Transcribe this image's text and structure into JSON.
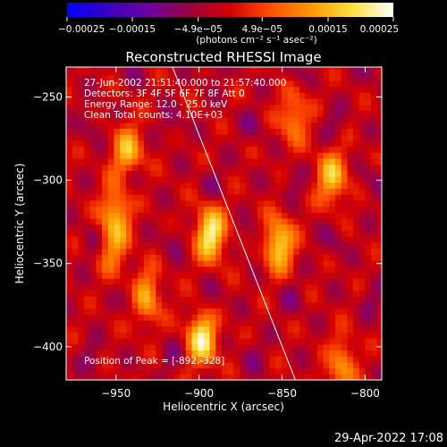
{
  "chart_data": {
    "type": "heatmap",
    "title": "Reconstructed RHESSI Image",
    "xlabel": "Heliocentric X (arcsec)",
    "ylabel": "Heliocentric Y (arcsec)",
    "xlim": [
      -980,
      -790
    ],
    "ylim": [
      -420,
      -232
    ],
    "x_ticks": [
      -950,
      -900,
      -850,
      -800
    ],
    "y_ticks": [
      -250,
      -300,
      -350,
      -400
    ],
    "x_tick_labels": [
      "−950",
      "−900",
      "−850",
      "−800"
    ],
    "y_tick_labels": [
      "−250",
      "−300",
      "−350",
      "−400"
    ],
    "colorbar": {
      "range": [
        -0.00025,
        0.00025
      ],
      "ticks": [
        -0.00025,
        -0.00015,
        -4.9e-05,
        4.9e-05,
        0.00015,
        0.00025
      ],
      "tick_labels": [
        "−0.00025",
        "−0.00015",
        "−4.9e−05",
        "4.9e−05",
        "0.00015",
        "0.00025"
      ],
      "unit": "(photons cm⁻² s⁻¹ asec⁻²)",
      "colors": [
        "#0000ff",
        "#3a00c0",
        "#6e00a0",
        "#9a0040",
        "#d40000",
        "#ff5000",
        "#ff9a00",
        "#ffe040",
        "#ffffff"
      ]
    },
    "annotations": [
      "27-Jun-2002 21:51:40.000 to 21:57:40.000",
      "Detectors: 3F 4F 5F 6F 7F 8F  Att 0",
      "Energy Range: 12.0 - 25.0 keV",
      "Clean    Total counts: 4.10E+03"
    ],
    "peak_label": "Position of Peak = [-892,-328]",
    "limb_line": {
      "x": [
        -916,
        -842
      ],
      "y": [
        -232,
        -420
      ]
    },
    "bright_sources": [
      {
        "x": -943,
        "y": -283,
        "intensity": 0.00017
      },
      {
        "x": -950,
        "y": -318,
        "intensity": 0.00015
      },
      {
        "x": -952,
        "y": -340,
        "intensity": 0.00012
      },
      {
        "x": -932,
        "y": -370,
        "intensity": 0.00016
      },
      {
        "x": -893,
        "y": -332,
        "intensity": 0.00024
      },
      {
        "x": -898,
        "y": -395,
        "intensity": 0.00023
      },
      {
        "x": -852,
        "y": -338,
        "intensity": 0.00021
      },
      {
        "x": -820,
        "y": -298,
        "intensity": 0.00018
      },
      {
        "x": -843,
        "y": -262,
        "intensity": 0.00013
      },
      {
        "x": -815,
        "y": -410,
        "intensity": 0.00016
      }
    ]
  },
  "footer": {
    "date": "29-Apr-2022 17:08"
  }
}
